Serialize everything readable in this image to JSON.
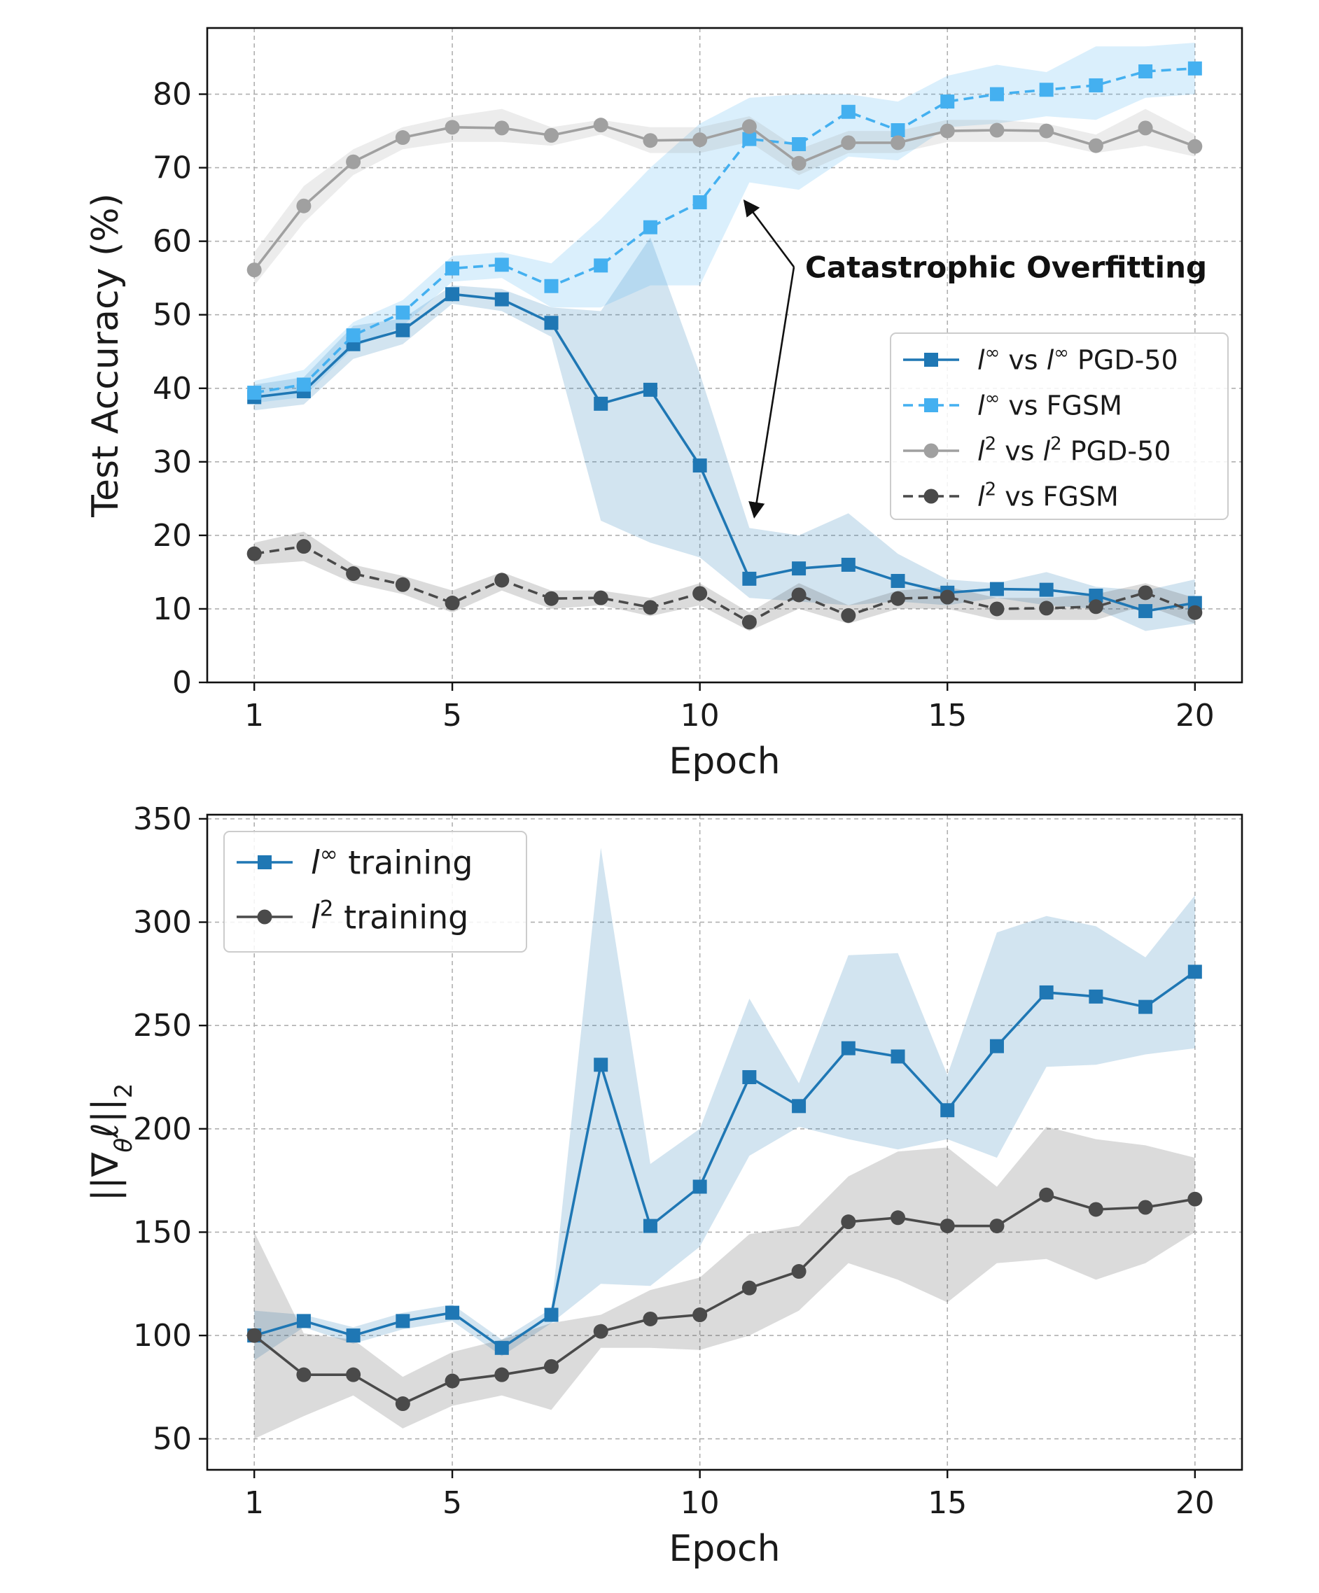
{
  "chart_data": [
    {
      "type": "line",
      "xlabel": "Epoch",
      "ylabel": "Test Accuracy (%)",
      "xlim": [
        0.05,
        20.95
      ],
      "ylim": [
        0,
        89
      ],
      "xticks": [
        1,
        5,
        10,
        15,
        20
      ],
      "yticks": [
        0,
        10,
        20,
        30,
        40,
        50,
        60,
        70,
        80
      ],
      "grid": true,
      "legend_position": "center-right",
      "annotation": {
        "text": "Catastrophic Overfitting",
        "arrow_targets": [
          [
            10.9,
            65.5
          ],
          [
            11.1,
            22.5
          ]
        ],
        "arrow_origin": [
          11.9,
          56.5
        ]
      },
      "series": [
        {
          "name": "l∞ vs l∞ PGD-50",
          "legend_base": "l",
          "legend_sup": "∞",
          "legend_mid": " vs ",
          "legend_base2": "l",
          "legend_sup2": "∞",
          "legend_tail": " PGD-50",
          "color": "#1f77b4",
          "linestyle": "solid",
          "marker": "square",
          "x": [
            1,
            2,
            3,
            4,
            5,
            6,
            7,
            8,
            9,
            10,
            11,
            12,
            13,
            14,
            15,
            16,
            17,
            18,
            19,
            20
          ],
          "y": [
            38.8,
            39.6,
            46.0,
            47.9,
            52.8,
            52.1,
            48.9,
            37.9,
            39.8,
            29.5,
            14.1,
            15.5,
            16.0,
            13.8,
            12.2,
            12.7,
            12.6,
            11.8,
            9.7,
            10.8
          ],
          "band_upper": [
            40.5,
            41.5,
            48.5,
            49.5,
            54.0,
            53.5,
            51.0,
            50.5,
            60.5,
            42.0,
            21.0,
            20.0,
            23.0,
            17.5,
            14.0,
            13.5,
            15.0,
            13.0,
            12.5,
            14.0
          ],
          "band_lower": [
            37.0,
            37.8,
            44.0,
            46.0,
            51.5,
            50.5,
            47.0,
            22.0,
            19.0,
            17.0,
            11.5,
            11.0,
            10.5,
            11.0,
            10.5,
            11.5,
            10.5,
            10.0,
            7.0,
            8.0
          ]
        },
        {
          "name": "l∞ vs FGSM",
          "legend_base": "l",
          "legend_sup": "∞",
          "legend_mid": " vs FGSM",
          "legend_base2": "",
          "legend_sup2": "",
          "legend_tail": "",
          "color": "#44b0f0",
          "linestyle": "dashed",
          "marker": "square",
          "x": [
            1,
            2,
            3,
            4,
            5,
            6,
            7,
            8,
            9,
            10,
            11,
            12,
            13,
            14,
            15,
            16,
            17,
            18,
            19,
            20
          ],
          "y": [
            39.4,
            40.5,
            47.2,
            50.3,
            56.3,
            56.8,
            53.9,
            56.7,
            61.9,
            65.3,
            73.9,
            73.2,
            77.6,
            75.1,
            79.0,
            80.0,
            80.6,
            81.2,
            83.1,
            83.5
          ],
          "band_upper": [
            41.0,
            42.5,
            49.0,
            52.0,
            58.0,
            58.5,
            57.0,
            63.0,
            70.0,
            76.0,
            79.5,
            80.0,
            80.0,
            79.0,
            82.5,
            84.0,
            83.0,
            86.5,
            86.5,
            87.0
          ],
          "band_lower": [
            38.0,
            38.8,
            45.5,
            48.5,
            54.5,
            55.0,
            51.0,
            51.0,
            54.0,
            54.0,
            68.0,
            67.0,
            71.5,
            71.0,
            75.5,
            76.0,
            77.0,
            76.5,
            79.5,
            80.0
          ]
        },
        {
          "name": "l2 vs l2 PGD-50",
          "legend_base": "l",
          "legend_sup": "2",
          "legend_mid": " vs ",
          "legend_base2": "l",
          "legend_sup2": "2",
          "legend_tail": " PGD-50",
          "color": "#a0a0a0",
          "linestyle": "solid",
          "marker": "circle",
          "x": [
            1,
            2,
            3,
            4,
            5,
            6,
            7,
            8,
            9,
            10,
            11,
            12,
            13,
            14,
            15,
            16,
            17,
            18,
            19,
            20
          ],
          "y": [
            56.1,
            64.8,
            70.8,
            74.1,
            75.5,
            75.4,
            74.4,
            75.8,
            73.7,
            73.8,
            75.6,
            70.6,
            73.4,
            73.4,
            75.0,
            75.1,
            75.0,
            73.0,
            75.4,
            72.9
          ],
          "band_upper": [
            58.5,
            67.5,
            72.5,
            75.5,
            77.0,
            78.0,
            75.5,
            76.5,
            75.5,
            75.5,
            77.0,
            72.5,
            75.0,
            75.0,
            76.5,
            76.5,
            76.0,
            74.5,
            78.0,
            74.5
          ],
          "band_lower": [
            54.0,
            62.5,
            69.0,
            72.5,
            73.5,
            73.5,
            73.0,
            74.5,
            72.0,
            72.0,
            73.5,
            69.0,
            72.0,
            72.0,
            73.5,
            73.5,
            73.5,
            72.0,
            73.0,
            71.5
          ]
        },
        {
          "name": "l2 vs FGSM",
          "legend_base": "l",
          "legend_sup": "2",
          "legend_mid": " vs FGSM",
          "legend_base2": "",
          "legend_sup2": "",
          "legend_tail": "",
          "color": "#4a4a4a",
          "linestyle": "dashed",
          "marker": "circle",
          "x": [
            1,
            2,
            3,
            4,
            5,
            6,
            7,
            8,
            9,
            10,
            11,
            12,
            13,
            14,
            15,
            16,
            17,
            18,
            19,
            20
          ],
          "y": [
            17.5,
            18.5,
            14.8,
            13.3,
            10.8,
            13.9,
            11.4,
            11.5,
            10.2,
            12.1,
            8.2,
            11.9,
            9.1,
            11.4,
            11.6,
            10.0,
            10.1,
            10.3,
            12.2,
            9.5
          ],
          "band_upper": [
            19.0,
            20.5,
            16.0,
            14.5,
            12.5,
            15.0,
            12.5,
            12.5,
            11.5,
            13.5,
            9.5,
            13.5,
            10.5,
            12.5,
            13.0,
            11.5,
            11.5,
            12.0,
            13.5,
            11.5
          ],
          "band_lower": [
            16.0,
            16.5,
            13.5,
            12.0,
            9.5,
            12.5,
            10.0,
            10.5,
            9.0,
            10.5,
            7.0,
            10.0,
            8.0,
            10.0,
            10.0,
            8.5,
            8.5,
            8.5,
            10.5,
            8.0
          ]
        }
      ]
    },
    {
      "type": "line",
      "xlabel": "Epoch",
      "ylabel": "||∇θℓ||2",
      "ylabel_main": "||∇",
      "ylabel_sub1": "θ",
      "ylabel_mid": "ℓ||",
      "ylabel_sub2": "2",
      "xlim": [
        0.05,
        20.95
      ],
      "ylim": [
        35,
        352
      ],
      "xticks": [
        1,
        5,
        10,
        15,
        20
      ],
      "yticks": [
        50,
        100,
        150,
        200,
        250,
        300,
        350
      ],
      "grid": true,
      "legend_position": "top-left",
      "series": [
        {
          "name": "l∞ training",
          "legend_base": "l",
          "legend_sup": "∞",
          "legend_mid": " training",
          "legend_base2": "",
          "legend_sup2": "",
          "legend_tail": "",
          "color": "#1f77b4",
          "linestyle": "solid",
          "marker": "square",
          "x": [
            1,
            2,
            3,
            4,
            5,
            6,
            7,
            8,
            9,
            10,
            11,
            12,
            13,
            14,
            15,
            16,
            17,
            18,
            19,
            20
          ],
          "y": [
            100,
            107,
            100,
            107,
            111,
            94,
            110,
            231,
            153,
            172,
            225,
            211,
            239,
            235,
            209,
            240,
            266,
            264,
            259,
            276
          ],
          "band_upper": [
            112,
            110,
            104,
            111,
            115,
            98,
            113,
            336,
            183,
            200,
            263,
            222,
            284,
            285,
            226,
            295,
            303,
            298,
            283,
            313
          ],
          "band_lower": [
            88,
            104,
            96,
            103,
            107,
            90,
            106,
            125,
            124,
            143,
            187,
            201,
            195,
            190,
            195,
            186,
            230,
            231,
            236,
            239
          ]
        },
        {
          "name": "l2 training",
          "legend_base": "l",
          "legend_sup": "2",
          "legend_mid": " training",
          "legend_base2": "",
          "legend_sup2": "",
          "legend_tail": "",
          "color": "#4a4a4a",
          "linestyle": "solid",
          "marker": "circle",
          "x": [
            1,
            2,
            3,
            4,
            5,
            6,
            7,
            8,
            9,
            10,
            11,
            12,
            13,
            14,
            15,
            16,
            17,
            18,
            19,
            20
          ],
          "y": [
            100,
            81,
            81,
            67,
            78,
            81,
            85,
            102,
            108,
            110,
            123,
            131,
            155,
            157,
            153,
            153,
            168,
            161,
            162,
            166
          ],
          "band_upper": [
            150,
            101,
            98,
            80,
            92,
            98,
            106,
            110,
            122,
            128,
            149,
            153,
            177,
            189,
            191,
            172,
            201,
            195,
            192,
            186
          ],
          "band_lower": [
            50,
            61,
            71,
            55,
            66,
            71,
            64,
            94,
            94,
            93,
            100,
            112,
            135,
            127,
            116,
            135,
            137,
            127,
            135,
            150
          ]
        }
      ]
    }
  ]
}
